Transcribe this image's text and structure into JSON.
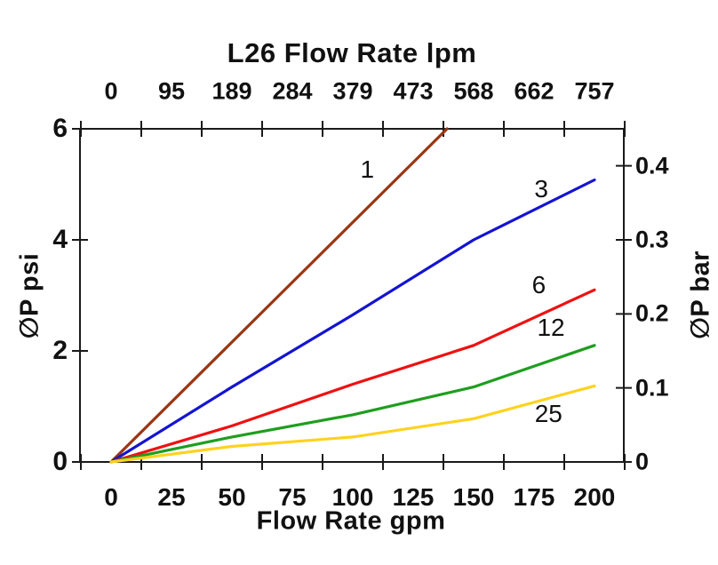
{
  "chart_data": {
    "type": "line",
    "title": "L26 Flow Rate lpm",
    "background_color": "#ffffff",
    "axis_color": "#1a1a1a",
    "grid": false,
    "legend": "inline labels next to each line",
    "x_top": {
      "description": "flow rate in lpm, aligned with gpm axis below",
      "ticks": [
        {
          "label": "0",
          "gpm": 0
        },
        {
          "label": "95",
          "gpm": 25
        },
        {
          "label": "189",
          "gpm": 50
        },
        {
          "label": "284",
          "gpm": 75
        },
        {
          "label": "379",
          "gpm": 100
        },
        {
          "label": "473",
          "gpm": 125
        },
        {
          "label": "568",
          "gpm": 150
        },
        {
          "label": "662",
          "gpm": 175
        },
        {
          "label": "757",
          "gpm": 200
        }
      ]
    },
    "x_bottom": {
      "label": "Flow Rate gpm",
      "range_gpm": [
        -12.5,
        212.5
      ],
      "tick_marks_gpm": [
        -12.5,
        12.5,
        37.5,
        62.5,
        87.5,
        112.5,
        137.5,
        162.5,
        187.5,
        212.5
      ],
      "ticks": [
        {
          "label": "0",
          "gpm": 0
        },
        {
          "label": "25",
          "gpm": 25
        },
        {
          "label": "50",
          "gpm": 50
        },
        {
          "label": "75",
          "gpm": 75
        },
        {
          "label": "100",
          "gpm": 100
        },
        {
          "label": "125",
          "gpm": 125
        },
        {
          "label": "150",
          "gpm": 150
        },
        {
          "label": "175",
          "gpm": 175
        },
        {
          "label": "200",
          "gpm": 200
        }
      ]
    },
    "y_left": {
      "label": "∅P psi",
      "range_psi": [
        0,
        6
      ],
      "ticks": [
        {
          "label": "0",
          "psi": 0
        },
        {
          "label": "2",
          "psi": 2
        },
        {
          "label": "4",
          "psi": 4
        },
        {
          "label": "6",
          "psi": 6
        }
      ]
    },
    "y_right": {
      "label": "∅P bar",
      "range_bar": [
        0,
        0.45
      ],
      "ticks": [
        {
          "label": "0",
          "bar": 0
        },
        {
          "label": "0.1",
          "bar": 0.1
        },
        {
          "label": "0.2",
          "bar": 0.2
        },
        {
          "label": "0.3",
          "bar": 0.3
        },
        {
          "label": "0.4",
          "bar": 0.4
        }
      ]
    },
    "series": [
      {
        "name": "1",
        "color": "#9A3612",
        "points_gpm_psi": [
          [
            0,
            0
          ],
          [
            139,
            6.0
          ]
        ],
        "label_at_gpm_psi": [
          106,
          5.26
        ]
      },
      {
        "name": "3",
        "color": "#1414D2",
        "points_gpm_psi": [
          [
            0,
            0
          ],
          [
            50,
            1.35
          ],
          [
            100,
            2.65
          ],
          [
            150,
            4.0
          ],
          [
            200,
            5.08
          ]
        ],
        "label_at_gpm_psi": [
          178,
          4.92
        ]
      },
      {
        "name": "6",
        "color": "#EE1111",
        "points_gpm_psi": [
          [
            0,
            0
          ],
          [
            50,
            0.65
          ],
          [
            100,
            1.4
          ],
          [
            150,
            2.1
          ],
          [
            200,
            3.1
          ]
        ],
        "label_at_gpm_psi": [
          177,
          3.19
        ]
      },
      {
        "name": "12",
        "color": "#1E9E1E",
        "points_gpm_psi": [
          [
            0,
            0
          ],
          [
            50,
            0.45
          ],
          [
            100,
            0.85
          ],
          [
            150,
            1.35
          ],
          [
            200,
            2.1
          ]
        ],
        "label_at_gpm_psi": [
          182,
          2.42
        ]
      },
      {
        "name": "25",
        "color": "#FFD21E",
        "points_gpm_psi": [
          [
            0,
            0
          ],
          [
            50,
            0.28
          ],
          [
            100,
            0.45
          ],
          [
            150,
            0.78
          ],
          [
            200,
            1.37
          ]
        ],
        "label_at_gpm_psi": [
          181,
          0.87
        ]
      }
    ]
  }
}
